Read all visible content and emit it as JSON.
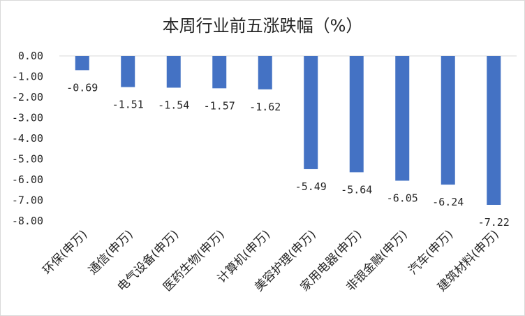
{
  "chart_data": {
    "type": "bar",
    "title": "本周行业前五涨跌幅（%）",
    "categories": [
      "环保(申万)",
      "通信(申万)",
      "电气设备(申万)",
      "医药生物(申万)",
      "计算机(申万)",
      "美容护理(申万)",
      "家用电器(申万)",
      "非银金融(申万)",
      "汽车(申万)",
      "建筑材料(申万)"
    ],
    "values": [
      -0.69,
      -1.51,
      -1.54,
      -1.57,
      -1.62,
      -5.49,
      -5.64,
      -6.05,
      -6.24,
      -7.22
    ],
    "value_labels": [
      "-0.69",
      "-1.51",
      "-1.54",
      "-1.57",
      "-1.62",
      "-5.49",
      "-5.64",
      "-6.05",
      "-6.24",
      "-7.22"
    ],
    "y_ticks": [
      "0.00",
      "-1.00",
      "-2.00",
      "-3.00",
      "-4.00",
      "-5.00",
      "-6.00",
      "-7.00",
      "-8.00"
    ],
    "ylim": [
      -8,
      0
    ],
    "grid": false,
    "legend": false,
    "bar_color": "#4472C4"
  }
}
